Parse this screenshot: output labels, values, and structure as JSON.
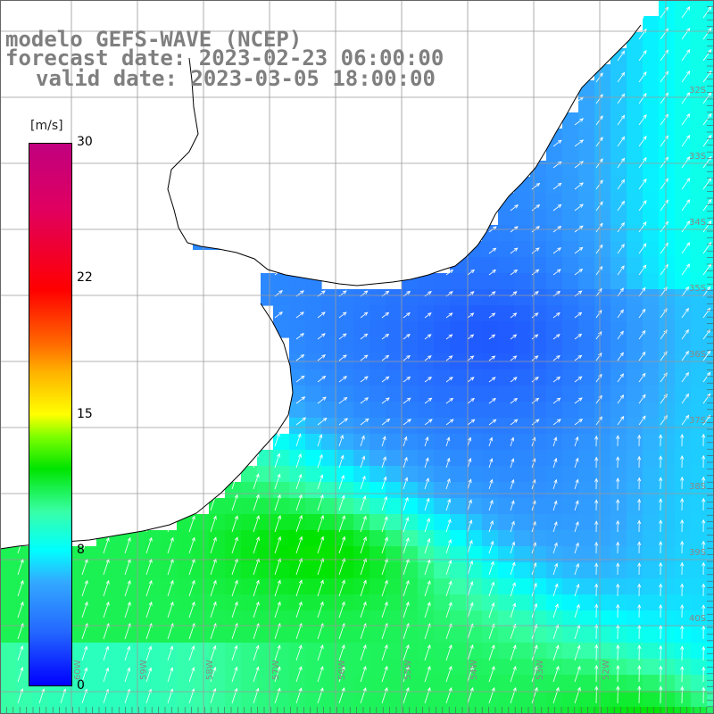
{
  "title": {
    "line1": "modelo GEFS-WAVE (NCEP)",
    "line2": "forecast date: 2023-02-23 06:00:00",
    "line3": "valid date: 2023-03-05 18:00:00"
  },
  "colorbar": {
    "units": "[m/s]",
    "ticks": [
      "30",
      "22",
      "15",
      "8",
      "0"
    ],
    "tick_values": [
      30,
      22,
      15,
      8,
      0
    ],
    "colors": {
      "low": "#0000ff",
      "mid_low": "#00ffff",
      "mid": "#00e400",
      "mid_high": "#ffff00",
      "high": "#ff0000",
      "top": "#c0007f"
    }
  },
  "map": {
    "land_color": "#ffffff",
    "coast_color": "#000000",
    "grid_color": "#999999",
    "vector_color": "#ffffff",
    "lat_labels": [
      "32S",
      "33S",
      "34S",
      "35S",
      "36S",
      "37S",
      "38S",
      "39S",
      "40S"
    ],
    "lon_labels": [
      "60W",
      "59W",
      "58W",
      "57W",
      "56W",
      "55W",
      "54W",
      "53W",
      "52W"
    ]
  }
}
